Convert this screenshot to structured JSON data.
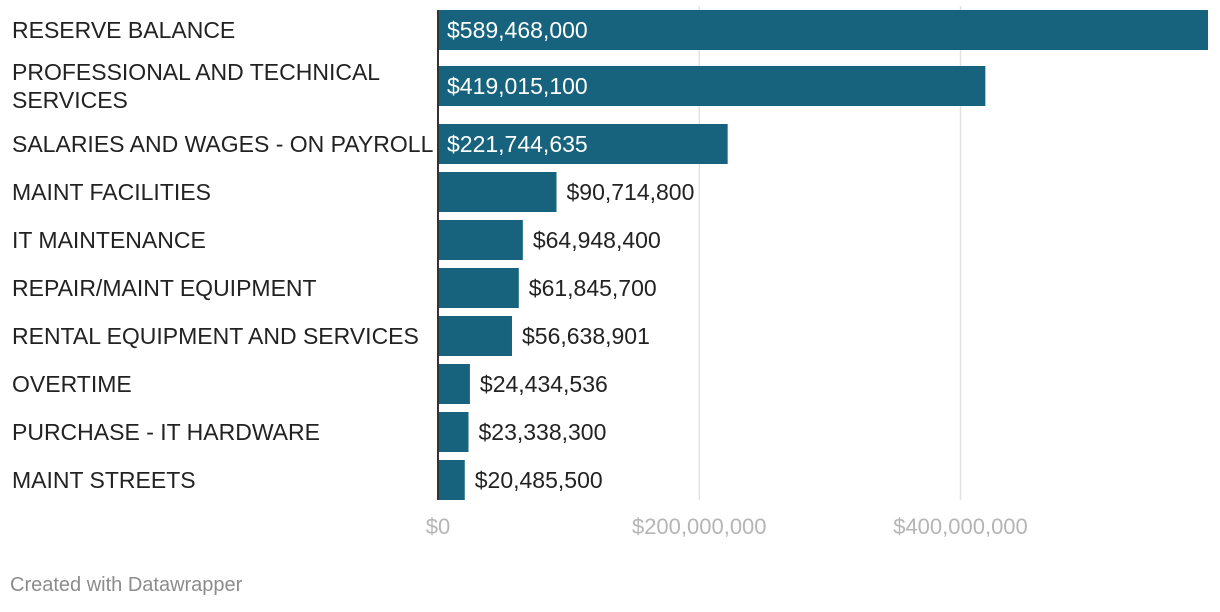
{
  "colors": {
    "bar": "#17637d",
    "grid": "#e3e3e3",
    "axis": "#333333",
    "label_dark": "#222222",
    "label_light": "#ffffff"
  },
  "chart_data": {
    "type": "bar",
    "orientation": "horizontal",
    "title": "",
    "xlabel": "",
    "ylabel": "",
    "xlim": [
      0,
      589468000
    ],
    "grid": true,
    "categories": [
      "RESERVE BALANCE",
      "PROFESSIONAL AND TECHNICAL SERVICES",
      "SALARIES AND WAGES - ON PAYROLL",
      "MAINT FACILITIES",
      "IT MAINTENANCE",
      "REPAIR/MAINT EQUIPMENT",
      "RENTAL EQUIPMENT AND SERVICES",
      "OVERTIME",
      "PURCHASE - IT HARDWARE",
      "MAINT STREETS"
    ],
    "category_label_lines": [
      [
        "RESERVE BALANCE"
      ],
      [
        "PROFESSIONAL AND TECHNICAL",
        "SERVICES"
      ],
      [
        "SALARIES AND WAGES - ON PAYROLL"
      ],
      [
        "MAINT FACILITIES"
      ],
      [
        "IT MAINTENANCE"
      ],
      [
        "REPAIR/MAINT EQUIPMENT"
      ],
      [
        "RENTAL EQUIPMENT AND SERVICES"
      ],
      [
        "OVERTIME"
      ],
      [
        "PURCHASE - IT HARDWARE"
      ],
      [
        "MAINT STREETS"
      ]
    ],
    "values": [
      589468000,
      419015100,
      221744635,
      90714800,
      64948400,
      61845700,
      56638901,
      24434536,
      23338300,
      20485500
    ],
    "value_labels": [
      "$589,468,000",
      "$419,015,100",
      "$221,744,635",
      "$90,714,800",
      "$64,948,400",
      "$61,845,700",
      "$56,638,901",
      "$24,434,536",
      "$23,338,300",
      "$20,485,500"
    ],
    "ticks": [
      0,
      200000000,
      400000000
    ],
    "tick_labels": [
      "$0",
      "$200,000,000",
      "$400,000,000"
    ]
  },
  "footer": {
    "credit": "Created with Datawrapper"
  }
}
